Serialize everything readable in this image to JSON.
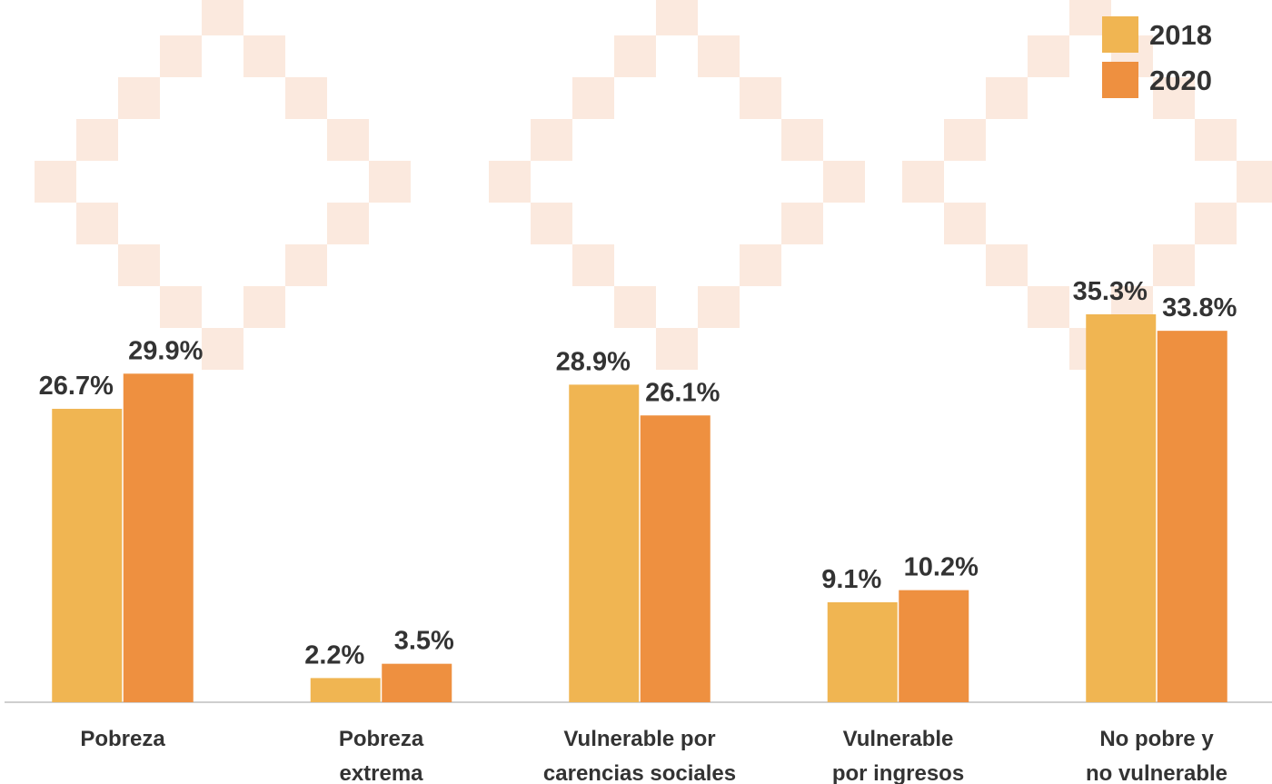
{
  "chart_data": {
    "type": "bar",
    "categories": [
      [
        "Pobreza"
      ],
      [
        "Pobreza",
        "extrema"
      ],
      [
        "Vulnerable por",
        "carencias sociales"
      ],
      [
        "Vulnerable",
        "por ingresos"
      ],
      [
        "No pobre y",
        "no vulnerable"
      ]
    ],
    "series": [
      {
        "name": "2018",
        "color": "#f0b552",
        "values": [
          26.7,
          2.2,
          28.9,
          9.1,
          35.3
        ],
        "value_labels": [
          "26.7%",
          "2.2%",
          "28.9%",
          "9.1%",
          "35.3%"
        ]
      },
      {
        "name": "2020",
        "color": "#ee9040",
        "values": [
          29.9,
          3.5,
          26.1,
          10.2,
          33.8
        ],
        "value_labels": [
          "29.9%",
          "3.5%",
          "26.1%",
          "10.2%",
          "33.8%"
        ]
      }
    ],
    "legend": "top-right"
  }
}
